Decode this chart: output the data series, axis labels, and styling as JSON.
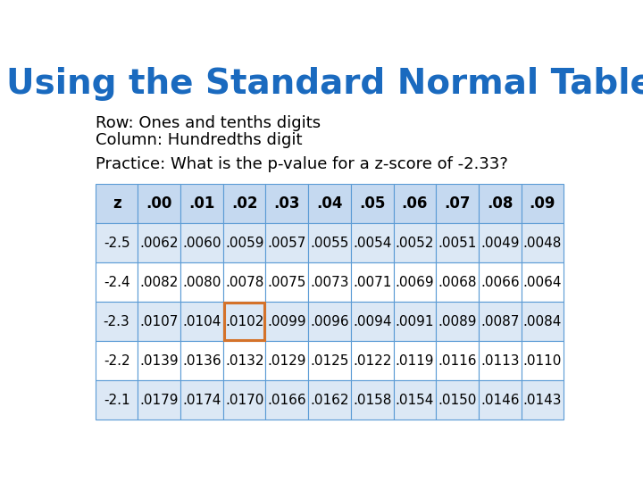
{
  "title": "Using the Standard Normal Table",
  "subtitle_line1": "Row: Ones and tenths digits",
  "subtitle_line2": "Column: Hundredths digit",
  "practice_text": "Practice: What is the p-value for a z-score of -2.33?",
  "col_headers": [
    "z",
    ".00",
    ".01",
    ".02",
    ".03",
    ".04",
    ".05",
    ".06",
    ".07",
    ".08",
    ".09"
  ],
  "rows": [
    [
      "-2.5",
      ".0062",
      ".0060",
      ".0059",
      ".0057",
      ".0055",
      ".0054",
      ".0052",
      ".0051",
      ".0049",
      ".0048"
    ],
    [
      "-2.4",
      ".0082",
      ".0080",
      ".0078",
      ".0075",
      ".0073",
      ".0071",
      ".0069",
      ".0068",
      ".0066",
      ".0064"
    ],
    [
      "-2.3",
      ".0107",
      ".0104",
      ".0102",
      ".0099",
      ".0096",
      ".0094",
      ".0091",
      ".0089",
      ".0087",
      ".0084"
    ],
    [
      "-2.2",
      ".0139",
      ".0136",
      ".0132",
      ".0129",
      ".0125",
      ".0122",
      ".0119",
      ".0116",
      ".0113",
      ".0110"
    ],
    [
      "-2.1",
      ".0179",
      ".0174",
      ".0170",
      ".0166",
      ".0162",
      ".0158",
      ".0154",
      ".0150",
      ".0146",
      ".0143"
    ]
  ],
  "highlighted_cell": [
    2,
    3
  ],
  "highlight_color": "#d4722a",
  "title_color": "#1a6abf",
  "header_bg": "#c5d9f0",
  "header_text_color": "#000000",
  "row_bg_even": "#dce8f5",
  "row_bg_odd": "#ffffff",
  "border_color": "#5b9bd5",
  "table_text_color": "#000000",
  "bg_color": "#ffffff",
  "title_fontsize": 28,
  "subtitle_fontsize": 13,
  "practice_fontsize": 13,
  "table_fontsize": 11,
  "header_fontsize": 12
}
